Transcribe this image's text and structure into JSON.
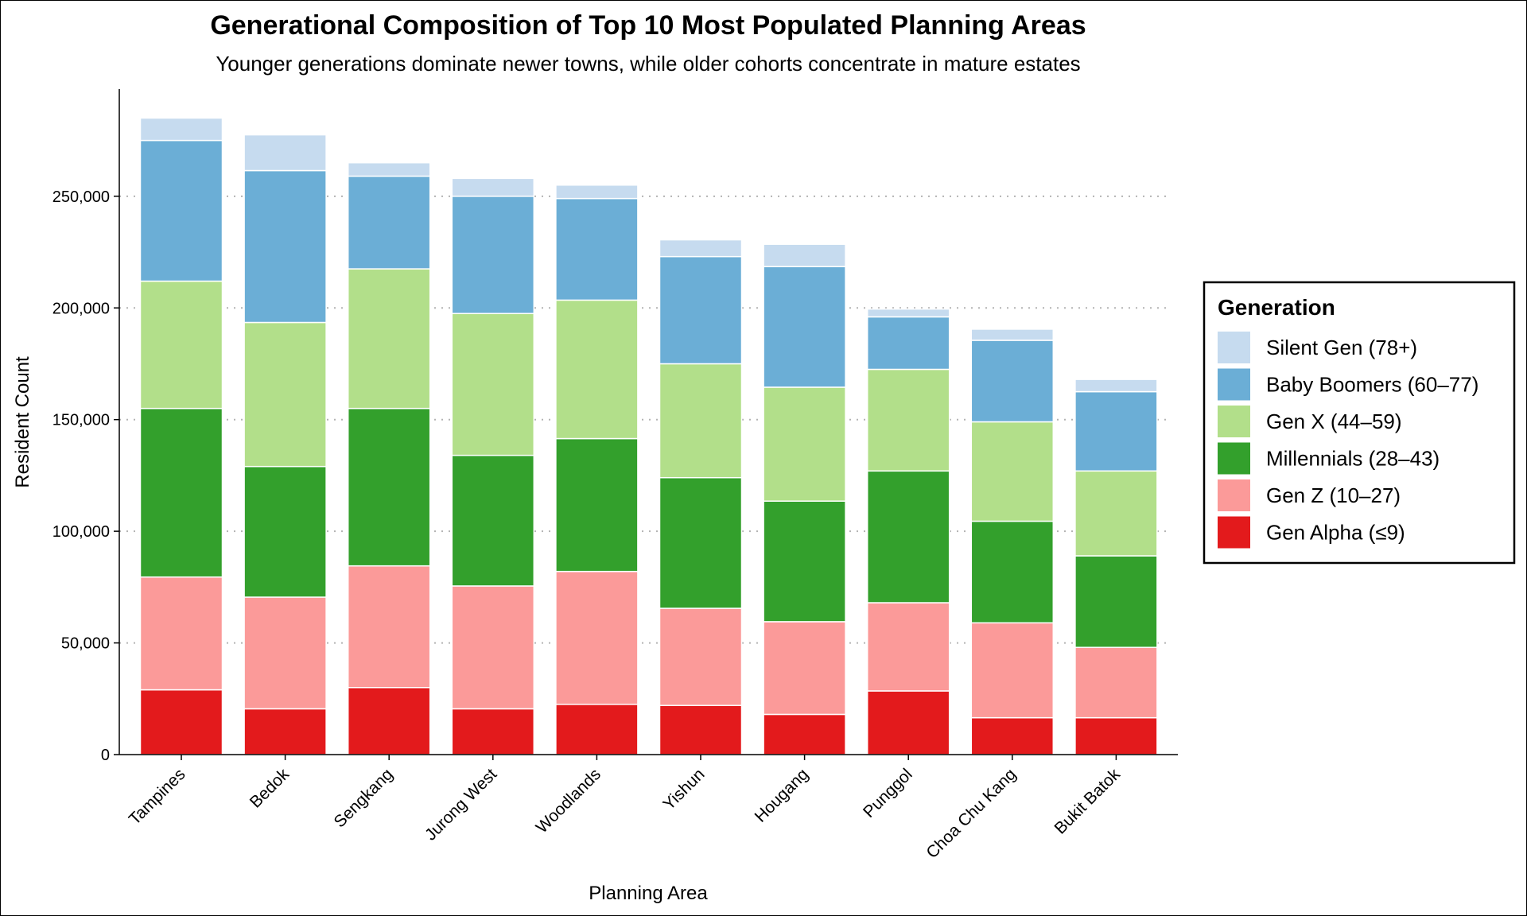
{
  "chart_data": {
    "type": "bar",
    "stacked": true,
    "title": "Generational Composition of Top 10 Most Populated Planning Areas",
    "subtitle": "Younger generations dominate newer towns, while older cohorts concentrate in mature estates",
    "xlabel": "Planning Area",
    "ylabel": "Resident Count",
    "ylim": [
      0,
      298000
    ],
    "yticks": [
      0,
      50000,
      100000,
      150000,
      200000,
      250000
    ],
    "ytick_labels": [
      "0",
      "50,000",
      "100,000",
      "150,000",
      "200,000",
      "250,000"
    ],
    "grid": "horizontal dotted",
    "legend_position": "right",
    "legend_title": "Generation",
    "categories": [
      "Tampines",
      "Bedok",
      "Sengkang",
      "Jurong West",
      "Woodlands",
      "Yishun",
      "Hougang",
      "Punggol",
      "Choa Chu Kang",
      "Bukit Batok"
    ],
    "series": [
      {
        "name": "Gen Alpha (≤9)",
        "color": "#e31a1c",
        "values": [
          29000,
          20500,
          30000,
          20500,
          22500,
          22000,
          18000,
          28500,
          16500,
          16500
        ]
      },
      {
        "name": "Gen Z (10–27)",
        "color": "#fb9a99",
        "values": [
          50500,
          50000,
          54500,
          55000,
          59500,
          43500,
          41500,
          39500,
          42500,
          31500
        ]
      },
      {
        "name": "Millennials (28–43)",
        "color": "#33a02c",
        "values": [
          75500,
          58500,
          70500,
          58500,
          59500,
          58500,
          54000,
          59000,
          45500,
          41000
        ]
      },
      {
        "name": "Gen X (44–59)",
        "color": "#b2df8a",
        "values": [
          57000,
          64500,
          62500,
          63500,
          62000,
          51000,
          51000,
          45500,
          44500,
          38000
        ]
      },
      {
        "name": "Baby Boomers (60–77)",
        "color": "#6baed6",
        "values": [
          63000,
          68000,
          41500,
          52500,
          45500,
          48000,
          54000,
          23500,
          36500,
          35500
        ]
      },
      {
        "name": "Silent Gen (78+)",
        "color": "#c6dbef",
        "values": [
          10000,
          16000,
          6000,
          8000,
          6000,
          7500,
          10000,
          3500,
          5000,
          5500
        ]
      }
    ]
  }
}
